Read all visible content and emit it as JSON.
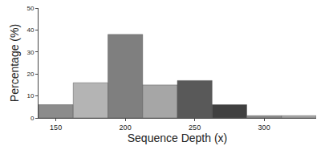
{
  "chart_data": {
    "type": "histogram",
    "x_label": "Sequence Depth (x)",
    "y_label": "Percentage (%)",
    "bins": [
      137.5,
      162.5,
      187.5,
      212.5,
      237.5,
      262.5,
      287.5,
      312.5,
      337.5
    ],
    "values": [
      6,
      16,
      38,
      15,
      17,
      6,
      1,
      1
    ],
    "colors": [
      "#8c8c8c",
      "#b4b4b4",
      "#7f7f7f",
      "#a6a6a6",
      "#595959",
      "#404040",
      "#8c8c8c",
      "#a6a6a6"
    ],
    "xlim": [
      137.5,
      337.5
    ],
    "xticks": [
      150,
      200,
      250,
      300
    ],
    "ylim": [
      0,
      50
    ],
    "yticks": [
      0,
      10,
      20,
      30,
      40,
      50
    ],
    "grid": false
  }
}
